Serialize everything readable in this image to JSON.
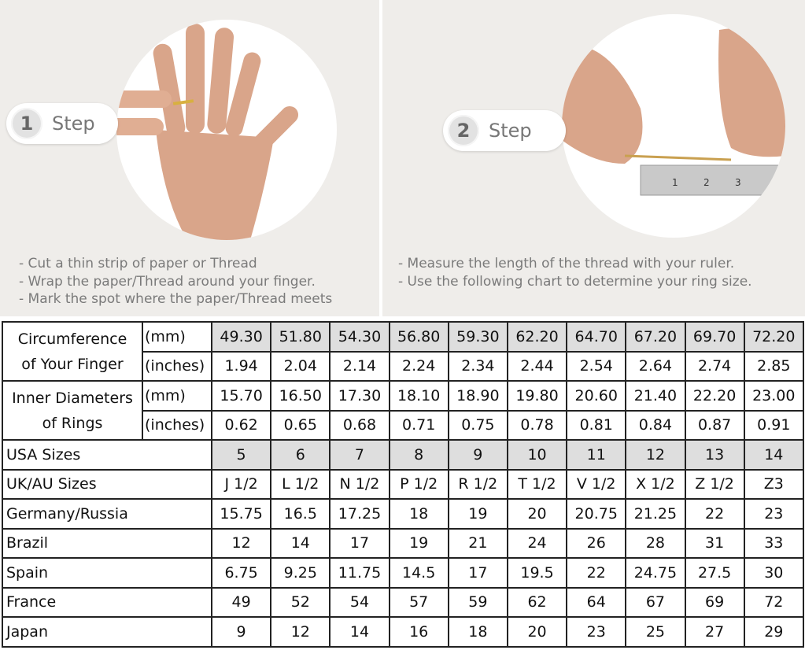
{
  "step1": {
    "number": "1",
    "label": "Step",
    "instructions": [
      "- Cut a thin strip of paper or Thread",
      "- Wrap the paper/Thread around your finger.",
      "- Mark the spot where the paper/Thread meets"
    ]
  },
  "step2": {
    "number": "2",
    "label": "Step",
    "instructions": [
      "- Measure the length of the thread with your ruler.",
      "- Use the following chart to determine your ring size."
    ]
  },
  "ruler_marks": [
    "1",
    "2",
    "3"
  ],
  "colors": {
    "panel_bg": "#efedea",
    "highlight_cell": "#dedede",
    "text_gray": "#7a7a7a"
  },
  "table": {
    "circumference": {
      "label_line1": "Circumference",
      "label_line2": "of Your Finger",
      "mm_label": "(mm)",
      "in_label": "(inches)",
      "mm": [
        "49.30",
        "51.80",
        "54.30",
        "56.80",
        "59.30",
        "62.20",
        "64.70",
        "67.20",
        "69.70",
        "72.20"
      ],
      "inches": [
        "1.94",
        "2.04",
        "2.14",
        "2.24",
        "2.34",
        "2.44",
        "2.54",
        "2.64",
        "2.74",
        "2.85"
      ]
    },
    "diameter": {
      "label_line1": "Inner Diameters",
      "label_line2": "of Rings",
      "mm_label": "(mm)",
      "in_label": "(inches)",
      "mm": [
        "15.70",
        "16.50",
        "17.30",
        "18.10",
        "18.90",
        "19.80",
        "20.60",
        "21.40",
        "22.20",
        "23.00"
      ],
      "inches": [
        "0.62",
        "0.65",
        "0.68",
        "0.71",
        "0.75",
        "0.78",
        "0.81",
        "0.84",
        "0.87",
        "0.91"
      ]
    },
    "rows": [
      {
        "label": "USA Sizes",
        "values": [
          "5",
          "6",
          "7",
          "8",
          "9",
          "10",
          "11",
          "12",
          "13",
          "14"
        ],
        "highlight": true
      },
      {
        "label": "UK/AU Sizes",
        "values": [
          "J 1/2",
          "L 1/2",
          "N 1/2",
          "P 1/2",
          "R 1/2",
          "T 1/2",
          "V 1/2",
          "X 1/2",
          "Z 1/2",
          "Z3"
        ]
      },
      {
        "label": "Germany/Russia",
        "values": [
          "15.75",
          "16.5",
          "17.25",
          "18",
          "19",
          "20",
          "20.75",
          "21.25",
          "22",
          "23"
        ]
      },
      {
        "label": "Brazil",
        "values": [
          "12",
          "14",
          "17",
          "19",
          "21",
          "24",
          "26",
          "28",
          "31",
          "33"
        ]
      },
      {
        "label": "Spain",
        "values": [
          "6.75",
          "9.25",
          "11.75",
          "14.5",
          "17",
          "19.5",
          "22",
          "24.75",
          "27.5",
          "30"
        ]
      },
      {
        "label": "France",
        "values": [
          "49",
          "52",
          "54",
          "57",
          "59",
          "62",
          "64",
          "67",
          "69",
          "72"
        ]
      },
      {
        "label": "Japan",
        "values": [
          "9",
          "12",
          "14",
          "16",
          "18",
          "20",
          "23",
          "25",
          "27",
          "29"
        ]
      }
    ]
  }
}
